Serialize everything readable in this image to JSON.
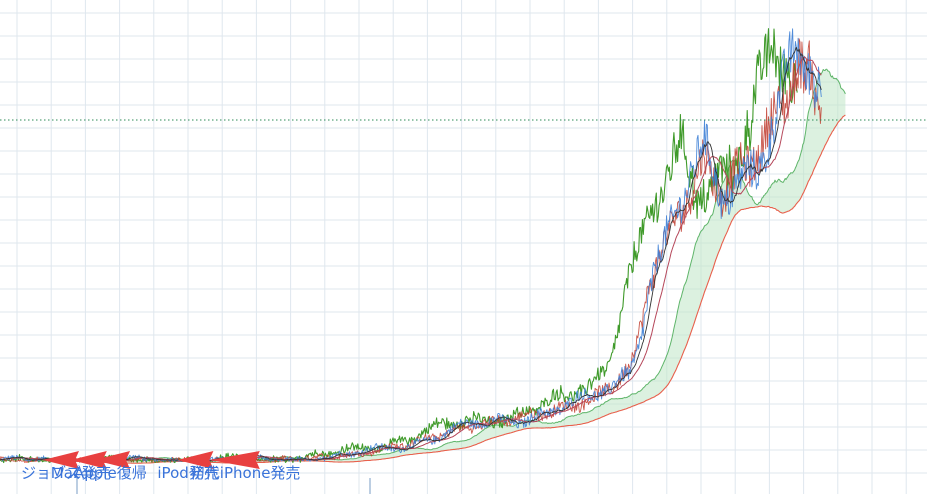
{
  "chart_data": {
    "type": "line",
    "grid": true,
    "legend": "none",
    "x": {
      "range": [
        0,
        1000
      ]
    },
    "y": {
      "range": [
        0,
        100
      ],
      "reference_line": 76
    },
    "colors": {
      "grid": "#dfe7ee",
      "reference_line": "#2e8b57",
      "price_a": "#3d7fd6",
      "price_b": "#c0392b",
      "lagging_span": "#3f9a2a",
      "conversion_line": "#333333",
      "base_line": "#b5475a",
      "cloud_span_a": "#5fb56a",
      "cloud_span_b": "#e8604c",
      "cloud_fill": "#bfe6c6",
      "arrow": "#e84040",
      "annotation_text": "#3a73d9"
    },
    "annotations": [
      {
        "x": 55,
        "text": "ジョブズ"
      },
      {
        "x": 85,
        "text": "Mac発売"
      },
      {
        "x": 110,
        "text": "Apple復帰"
      },
      {
        "x": 200,
        "text": "iPod発売"
      },
      {
        "x": 235,
        "text": "初代iPhone発売"
      }
    ],
    "anchors": {
      "x": [
        0,
        150,
        300,
        380,
        450,
        500,
        560,
        600,
        640,
        660,
        680,
        690,
        700,
        715,
        730,
        750,
        760,
        780,
        800,
        820,
        840,
        855,
        862,
        868,
        875,
        880,
        886
      ],
      "y": [
        0.3,
        0.3,
        0.5,
        1.5,
        4.5,
        7.5,
        10,
        11.5,
        14,
        17,
        21,
        29,
        40,
        47,
        55,
        62,
        67,
        60,
        65,
        70,
        78,
        86,
        89,
        84,
        86,
        79,
        81
      ]
    }
  }
}
